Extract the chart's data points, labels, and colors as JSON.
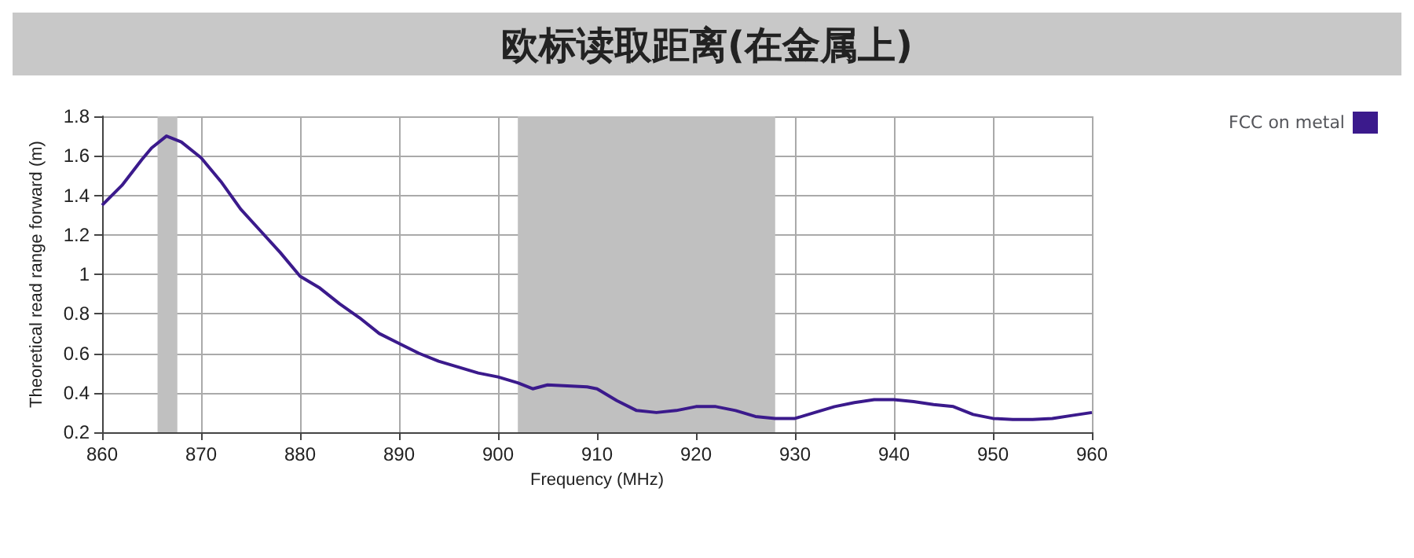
{
  "chart_data": {
    "type": "line",
    "title": "欧标读取距离(在金属上)",
    "xlabel": "Frequency (MHz)",
    "ylabel": "Theoretical read range forward (m)",
    "x": [
      860,
      862,
      864,
      865,
      866.5,
      868,
      870,
      872,
      874,
      876,
      878,
      880,
      882,
      884,
      886,
      888,
      890,
      892,
      894,
      896,
      898,
      900,
      902,
      903.5,
      905,
      907,
      909,
      910,
      912,
      914,
      916,
      918,
      920,
      922,
      924,
      926,
      928,
      930,
      932,
      934,
      936,
      938,
      940,
      942,
      944,
      946,
      948,
      950,
      952,
      954,
      956,
      958,
      960
    ],
    "series": [
      {
        "name": "FCC on metal",
        "color": "#3b1a8c",
        "values": [
          1.35,
          1.45,
          1.58,
          1.64,
          1.7,
          1.67,
          1.59,
          1.47,
          1.33,
          1.22,
          1.11,
          0.99,
          0.93,
          0.85,
          0.78,
          0.7,
          0.65,
          0.6,
          0.56,
          0.53,
          0.5,
          0.48,
          0.45,
          0.42,
          0.44,
          0.435,
          0.43,
          0.42,
          0.36,
          0.31,
          0.3,
          0.31,
          0.33,
          0.33,
          0.31,
          0.28,
          0.27,
          0.27,
          0.3,
          0.33,
          0.35,
          0.365,
          0.365,
          0.355,
          0.34,
          0.33,
          0.29,
          0.27,
          0.265,
          0.265,
          0.27,
          0.285,
          0.3
        ]
      }
    ],
    "xlim": [
      860,
      960
    ],
    "xticks": [
      860,
      870,
      880,
      890,
      900,
      910,
      920,
      930,
      940,
      950,
      960
    ],
    "ylim": [
      0.2,
      1.8
    ],
    "yticks": [
      0.2,
      0.4,
      0.6,
      0.8,
      1,
      1.2,
      1.4,
      1.6,
      1.8
    ],
    "bands": [
      {
        "axis": "x",
        "from": 865.6,
        "to": 867.6,
        "color": "#c0c0c0"
      },
      {
        "axis": "x",
        "from": 902,
        "to": 928,
        "color": "#c0c0c0"
      }
    ],
    "grid": true,
    "legend": "right",
    "marker": "none",
    "line_style": "solid"
  }
}
